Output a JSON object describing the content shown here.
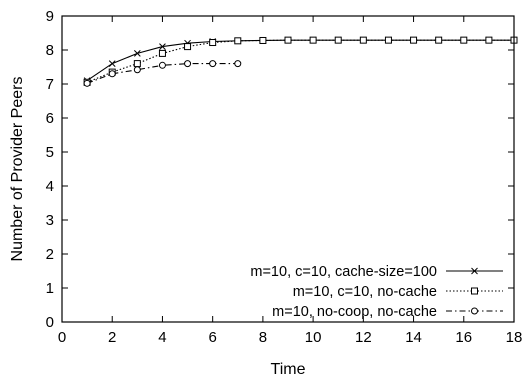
{
  "chart_data": {
    "type": "line",
    "title": "",
    "xlabel": "Time",
    "ylabel": "Number of Provider Peers",
    "xlim": [
      0,
      18
    ],
    "ylim": [
      0,
      9
    ],
    "x_ticks": [
      0,
      2,
      4,
      6,
      8,
      10,
      12,
      14,
      16,
      18
    ],
    "y_ticks": [
      0,
      1,
      2,
      3,
      4,
      5,
      6,
      7,
      8,
      9
    ],
    "grid": false,
    "legend_position": "bottom-right",
    "series": [
      {
        "name": "m=10, c=10, cache-size=100",
        "marker": "x",
        "line_style": "solid",
        "x": [
          1,
          2,
          3,
          4,
          5,
          6,
          7,
          8,
          9,
          10,
          11,
          12,
          13,
          14,
          15,
          16,
          17,
          18
        ],
        "y": [
          7.1,
          7.6,
          7.9,
          8.1,
          8.2,
          8.25,
          8.27,
          8.28,
          8.29,
          8.29,
          8.29,
          8.29,
          8.29,
          8.29,
          8.29,
          8.29,
          8.29,
          8.29
        ]
      },
      {
        "name": "m=10, c=10, no-cache",
        "marker": "square",
        "line_style": "dotted",
        "x": [
          1,
          2,
          3,
          4,
          5,
          6,
          7,
          8,
          9,
          10,
          11,
          12,
          13,
          14,
          15,
          16,
          17,
          18
        ],
        "y": [
          7.05,
          7.35,
          7.6,
          7.9,
          8.1,
          8.22,
          8.27,
          8.28,
          8.29,
          8.29,
          8.29,
          8.29,
          8.29,
          8.29,
          8.29,
          8.29,
          8.29,
          8.29
        ]
      },
      {
        "name": "m=10, no-coop, no-cache",
        "marker": "circle",
        "line_style": "dashdot",
        "x": [
          1,
          2,
          3,
          4,
          5,
          6,
          7
        ],
        "y": [
          7.02,
          7.3,
          7.42,
          7.55,
          7.6,
          7.6,
          7.6
        ]
      }
    ]
  }
}
